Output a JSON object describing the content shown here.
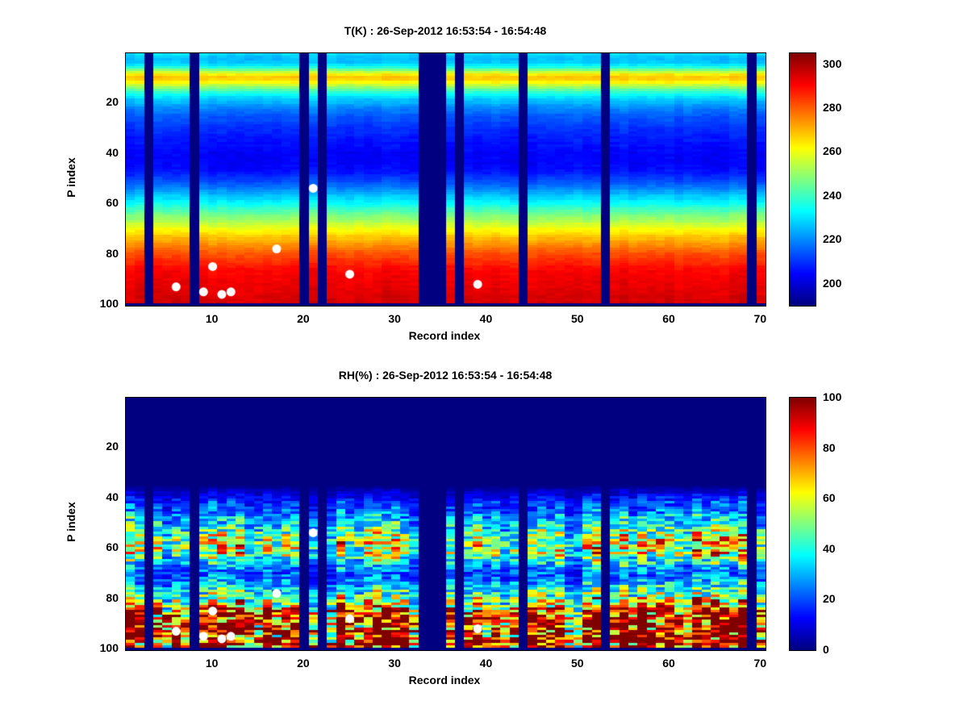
{
  "figure": {
    "background": "#ffffff"
  },
  "chart_data": [
    {
      "type": "heatmap",
      "quantity": "temperature",
      "title": "T(K) : 26-Sep-2012 16:53:54 - 16:54:48",
      "xlabel": "Record index",
      "ylabel": "P index",
      "x_range": [
        1,
        70
      ],
      "y_range": [
        1,
        100
      ],
      "y_axis_direction": "reversed",
      "x_ticks": [
        10,
        20,
        30,
        40,
        50,
        60,
        70
      ],
      "y_ticks": [
        20,
        40,
        60,
        80,
        100
      ],
      "colormap": "jet",
      "grid": false,
      "color_axis": [
        190,
        305
      ],
      "colorbar_ticks": [
        200,
        220,
        240,
        260,
        280,
        300
      ],
      "missing_record_columns": [
        3,
        8,
        20,
        22,
        33,
        34,
        35,
        37,
        44,
        53,
        69
      ],
      "profile_by_p_index": [
        229,
        227,
        226,
        227,
        231,
        237,
        246,
        256,
        264,
        268,
        267,
        262,
        255,
        249,
        243,
        238,
        234,
        230,
        227,
        225,
        222,
        220,
        218,
        217,
        215,
        214,
        213,
        212,
        211,
        210,
        209,
        209,
        208,
        207,
        207,
        206,
        206,
        205,
        205,
        204,
        204,
        204,
        204,
        204,
        205,
        205,
        206,
        207,
        209,
        211,
        213,
        215,
        217,
        219,
        222,
        224,
        227,
        229,
        232,
        234,
        237,
        240,
        242,
        245,
        248,
        250,
        253,
        256,
        258,
        261,
        263,
        265,
        268,
        270,
        272,
        274,
        276,
        278,
        280,
        282,
        283,
        285,
        286,
        287,
        289,
        290,
        291,
        291,
        292,
        292,
        293,
        293,
        293,
        294,
        294,
        294,
        295,
        295,
        295,
        null
      ],
      "markers": {
        "shape": "circle",
        "color": "#ffffff",
        "points": [
          [
            6,
            93
          ],
          [
            9,
            95
          ],
          [
            10,
            85
          ],
          [
            11,
            96
          ],
          [
            12,
            95
          ],
          [
            17,
            78
          ],
          [
            21,
            54
          ],
          [
            25,
            88
          ],
          [
            39,
            92
          ]
        ]
      }
    },
    {
      "type": "heatmap",
      "quantity": "relative_humidity",
      "title": "RH(%) : 26-Sep-2012 16:53:54 - 16:54:48",
      "xlabel": "Record index",
      "ylabel": "P index",
      "x_range": [
        1,
        70
      ],
      "y_range": [
        1,
        100
      ],
      "y_axis_direction": "reversed",
      "x_ticks": [
        10,
        20,
        30,
        40,
        50,
        60,
        70
      ],
      "y_ticks": [
        20,
        40,
        60,
        80,
        100
      ],
      "colormap": "jet",
      "grid": false,
      "color_axis": [
        0,
        100
      ],
      "colorbar_ticks": [
        0,
        20,
        40,
        60,
        80,
        100
      ],
      "missing_record_columns": [
        3,
        8,
        20,
        22,
        33,
        34,
        35,
        37,
        44,
        53,
        69
      ],
      "profile_by_p_index": [
        0,
        0,
        0,
        0,
        0,
        0,
        0,
        0,
        0,
        0,
        0,
        0,
        0,
        0,
        0,
        0,
        0,
        0,
        0,
        0,
        0,
        0,
        0,
        0,
        0,
        0,
        0,
        0,
        0,
        0,
        0,
        0,
        0,
        0,
        0,
        2,
        4,
        6,
        8,
        10,
        12,
        14,
        15,
        16,
        18,
        20,
        22,
        24,
        25,
        27,
        30,
        33,
        36,
        38,
        40,
        42,
        44,
        45,
        46,
        46,
        45,
        43,
        40,
        36,
        32,
        28,
        24,
        21,
        19,
        18,
        18,
        19,
        21,
        24,
        27,
        30,
        33,
        36,
        39,
        42,
        45,
        48,
        50,
        52,
        54,
        56,
        57,
        58,
        59,
        60,
        60,
        61,
        61,
        62,
        62,
        62,
        61,
        60,
        58,
        0
      ],
      "markers": {
        "shape": "circle",
        "color": "#ffffff",
        "points": [
          [
            6,
            93
          ],
          [
            9,
            95
          ],
          [
            10,
            85
          ],
          [
            11,
            96
          ],
          [
            12,
            95
          ],
          [
            17,
            78
          ],
          [
            21,
            54
          ],
          [
            25,
            88
          ],
          [
            39,
            92
          ]
        ]
      }
    }
  ]
}
